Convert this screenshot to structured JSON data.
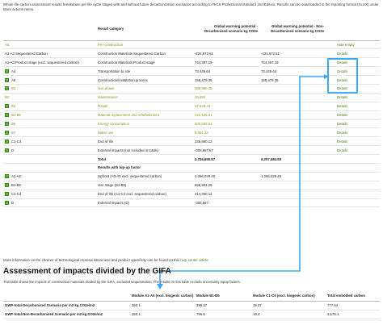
{
  "intro": "Whole life carbon assessment results breakdown per life cycle stages with and without future decarbonization scenarios according to RICS Professional standard 2nd Edition. Results can be downloaded in the reporting format (XLSX) under More actions menu.",
  "results_table": {
    "headers": {
      "category": "Result category",
      "decarb": "Global warming potential - Decarbonised scenario kg CO2e",
      "nondecarb": "Global warming potential - Non-Decarbonised scenario kg CO2e"
    },
    "rows": [
      {
        "toggle": false,
        "stage": "A5",
        "category": "Pre-construction",
        "decarb": "",
        "nondecarb": "",
        "action": "Hide empty",
        "style": "cat"
      },
      {
        "toggle": false,
        "stage": "A1-A3 Sequestered Carbon",
        "category": "Construction Materials-Sequestered Carbon",
        "decarb": "-221,672.51",
        "nondecarb": "-221,672.51",
        "action": "Details",
        "style": ""
      },
      {
        "toggle": false,
        "stage": "A1-A3 Product stage (excl. sequestered carbon)",
        "category": "Construction Materials-Product stage",
        "decarb": "744,397.19",
        "nondecarb": "744,397.19",
        "action": "Details",
        "style": ""
      },
      {
        "toggle": true,
        "stage": "A4",
        "category": "Transportation to site",
        "decarb": "73,445.64",
        "nondecarb": "73,445.64",
        "action": "Details",
        "style": ""
      },
      {
        "toggle": true,
        "stage": "A5",
        "category": "Construction/installation process",
        "decarb": "158,479.35",
        "nondecarb": "158,479.35",
        "action": "Details",
        "style": ""
      },
      {
        "toggle": true,
        "stage": "B1",
        "category": "Use phase",
        "decarb": "585,990.25",
        "nondecarb": "",
        "action": "Details",
        "style": "cat"
      },
      {
        "toggle": false,
        "stage": "B2",
        "category": "Maintenance",
        "decarb": "15,650",
        "nondecarb": "",
        "action": "Details",
        "style": "cat"
      },
      {
        "toggle": true,
        "stage": "B3",
        "category": "Repair",
        "decarb": "17,929.43",
        "nondecarb": "",
        "action": "Details",
        "style": "cat"
      },
      {
        "toggle": true,
        "stage": "B4-B5",
        "category": "Material replacement and refurbishment",
        "decarb": "212,536.61",
        "nondecarb": "",
        "action": "Details",
        "style": "cat"
      },
      {
        "toggle": true,
        "stage": "B6",
        "category": "Energy consumption",
        "decarb": "606,569.61",
        "nondecarb": "",
        "action": "Details",
        "style": "cat"
      },
      {
        "toggle": true,
        "stage": "B7",
        "category": "Water use",
        "decarb": "5,691.24",
        "nondecarb": "",
        "action": "Details",
        "style": "cat"
      },
      {
        "toggle": true,
        "stage": "C1-C4",
        "category": "End of life",
        "decarb": "235,890.13",
        "nondecarb": "",
        "action": "Details",
        "style": ""
      },
      {
        "toggle": true,
        "stage": "D",
        "category": "External impacts (not included in totals)",
        "decarb": "-306,667.67",
        "nondecarb": "",
        "action": "Details",
        "style": ""
      },
      {
        "toggle": false,
        "stage": "",
        "category": "Total",
        "decarb": "2,726,655.87",
        "nondecarb": "6,257,684.69",
        "action": "",
        "style": "bold"
      },
      {
        "toggle": false,
        "stage": "",
        "category": "Results with top-up factor",
        "decarb": "",
        "nondecarb": "",
        "action": "",
        "style": "bold"
      },
      {
        "toggle": true,
        "stage": "A1-A5",
        "category": "Upfront (A0-A5 excl. sequestered carbon)",
        "decarb": "1,066,029.45",
        "nondecarb": "1,066,029.45",
        "action": "",
        "style": ""
      },
      {
        "toggle": true,
        "stage": "B1-B5",
        "category": "Use stage (B1-B5)",
        "decarb": "658,901.25",
        "nondecarb": "",
        "action": "",
        "style": ""
      },
      {
        "toggle": true,
        "stage": "C1-C4",
        "category": "End of life (C1-C4 excl. sequestered carbon)",
        "decarb": "214,400.12",
        "nondecarb": "",
        "action": "",
        "style": ""
      },
      {
        "toggle": true,
        "stage": "D",
        "category": "External impacts (D)",
        "decarb": "-306,667",
        "nondecarb": "",
        "action": "",
        "style": ""
      }
    ]
  },
  "more_info": {
    "text": "More information on the choices of technological representativeness and product specificity can be found on this",
    "link": "help center article"
  },
  "gifa": {
    "title": "Assessment of impacts divided by the GIFA",
    "desc": "This table shows the impacts of construction materials divided by the GIFA, excluded sequestration. The results on this table exclude uncertainty topup factors.",
    "headers": [
      "",
      "Module A1-A5 (excl. biogenic carbon)",
      "Module B1-B5",
      "Module C1-C4 (excl. biogenic carbon)",
      "Total embodied carbon"
    ],
    "rows": [
      [
        "GWP-total-Decarbonised Scenario per m2 kg CO2e/m2",
        "360.1",
        "398.17",
        "19.27",
        "777.54"
      ],
      [
        "GWP-total-Non-Decarbonised Scenario per m2 kg CO2e/m2",
        "360.1",
        "796.6",
        "19.4",
        "1,176.1"
      ]
    ]
  },
  "colors": {
    "accent_green": "#7a9a1e",
    "highlight_blue": "#3fa9f5"
  }
}
